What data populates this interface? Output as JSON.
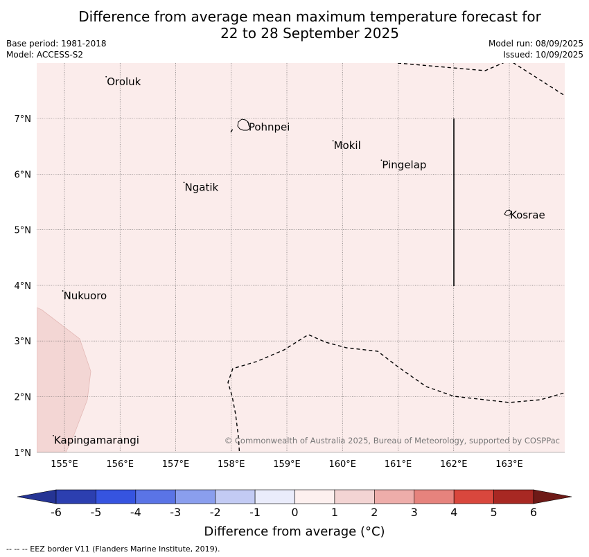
{
  "header": {
    "title_line1": "Difference from average mean maximum temperature forecast for",
    "title_line2": "22 to 28 September 2025",
    "base_period": "Base period: 1981-2018",
    "model": "Model: ACCESS-S2",
    "model_run": "Model run: 08/09/2025",
    "issued": "Issued: 10/09/2025"
  },
  "map": {
    "lon_ticks": [
      "155°E",
      "156°E",
      "157°E",
      "158°E",
      "159°E",
      "160°E",
      "161°E",
      "162°E",
      "163°E"
    ],
    "lat_ticks": [
      "7°N",
      "6°N",
      "5°N",
      "4°N",
      "3°N",
      "2°N",
      "1°N"
    ],
    "places": [
      {
        "name": "Oroluk",
        "lon": 155.75,
        "lat": 7.7
      },
      {
        "name": "Pohnpei",
        "lon": 158.3,
        "lat": 6.88
      },
      {
        "name": "Mokil",
        "lon": 159.83,
        "lat": 6.55
      },
      {
        "name": "Pingelap",
        "lon": 160.7,
        "lat": 6.2
      },
      {
        "name": "Ngatik",
        "lon": 157.15,
        "lat": 5.8
      },
      {
        "name": "Kosrae",
        "lon": 163.0,
        "lat": 5.3
      },
      {
        "name": "Nukuoro",
        "lon": 154.97,
        "lat": 3.85
      },
      {
        "name": "Kapingamarangi",
        "lon": 154.8,
        "lat": 1.25
      }
    ],
    "background_anomaly_range": "0 to 1",
    "patch_anomaly_range": "1 to 2",
    "copyright": "© Commonwealth of Australia 2025, Bureau of Meteorology, supported by COSPPac"
  },
  "colorbar": {
    "title": "Difference from average (°C)",
    "tick_labels": [
      "-6",
      "-5",
      "-4",
      "-3",
      "-2",
      "-1",
      "0",
      "1",
      "2",
      "3",
      "4",
      "5",
      "6"
    ],
    "colors": [
      "#253494",
      "#2c3fb0",
      "#3654e0",
      "#5a74e6",
      "#8a9eee",
      "#c3cbf4",
      "#eaecfb",
      "#fdf0ef",
      "#f3d4d3",
      "#eeadaa",
      "#e6837d",
      "#d9473d",
      "#a82823",
      "#6e1a17"
    ]
  },
  "legend_note": "--  --  -- EEZ border V11 (Flanders Marine Institute, 2019)."
}
